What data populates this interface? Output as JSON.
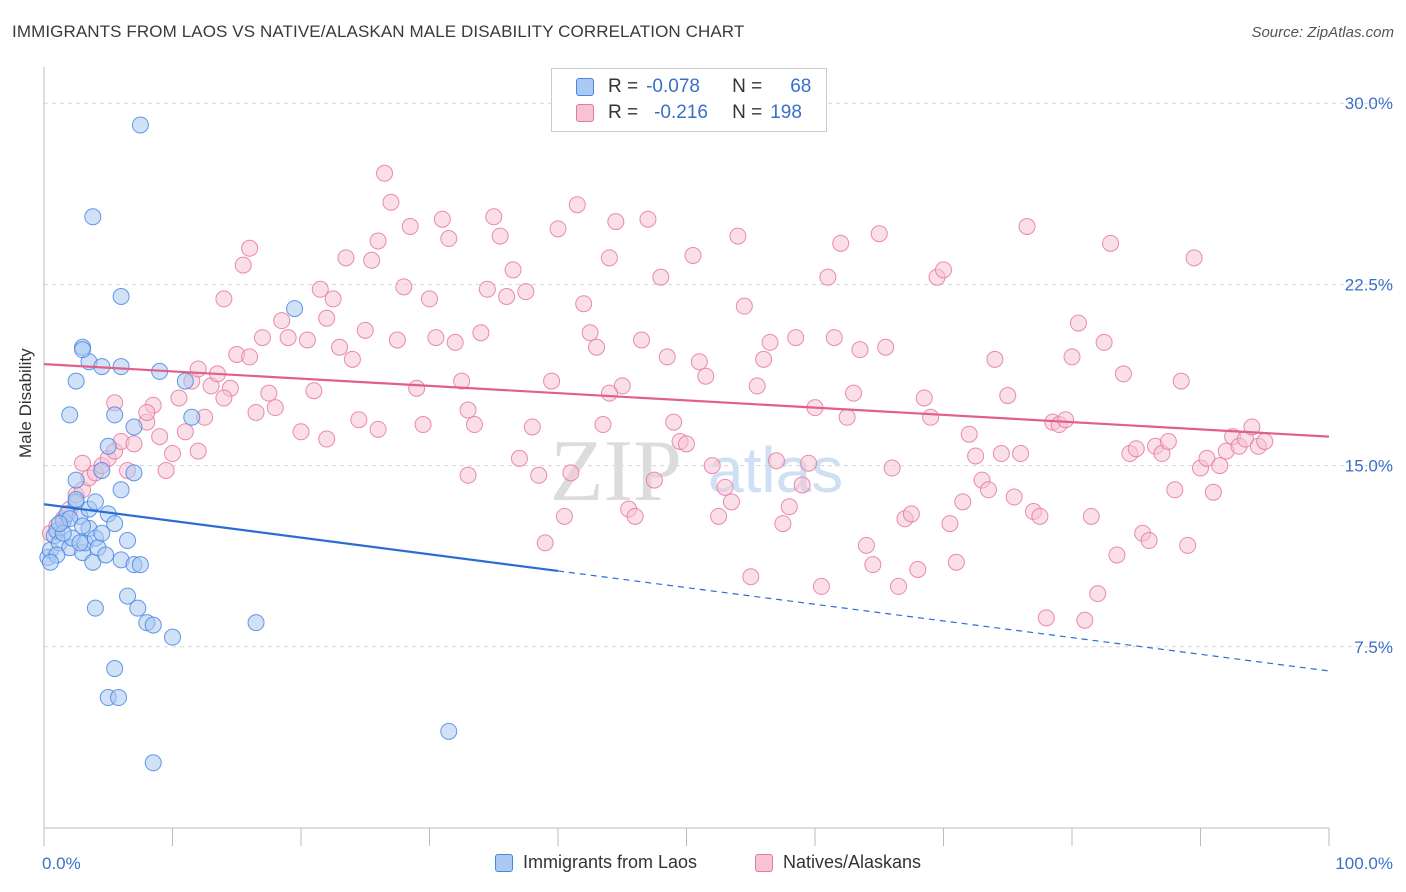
{
  "header": {
    "title": "IMMIGRANTS FROM LAOS VS NATIVE/ALASKAN MALE DISABILITY CORRELATION CHART",
    "source": "Source: ZipAtlas.com"
  },
  "watermark": {
    "zip": "ZIP",
    "atlas": "atlas"
  },
  "legend": {
    "rows": [
      {
        "r_label": "R =",
        "r_value": "-0.078",
        "n_label": "N =",
        "n_value": "68"
      },
      {
        "r_label": "R =",
        "r_value": "-0.216",
        "n_label": "N =",
        "n_value": "198"
      }
    ],
    "bottom": [
      "Immigrants from Laos",
      "Natives/Alaskans"
    ]
  },
  "colors": {
    "blue": "#4a86e0",
    "blue_fill": "#a9c8f2",
    "blue_line": "#2a6ed3",
    "pink": "#e8789f",
    "pink_fill": "#f6c3d5",
    "pink_line": "#e0608a",
    "axis_text": "#3a6fc9",
    "grid": "#d5d5d5"
  },
  "chart_data": {
    "type": "scatter",
    "title": "IMMIGRANTS FROM LAOS VS NATIVE/ALASKAN MALE DISABILITY CORRELATION CHART",
    "xlabel": "",
    "ylabel": "Male Disability",
    "xlim": [
      0,
      100
    ],
    "ylim": [
      0,
      31.5
    ],
    "x_tick_labels": [
      "0.0%",
      "100.0%"
    ],
    "y_ticks": [
      7.5,
      15.0,
      22.5,
      30.0
    ],
    "y_tick_labels": [
      "7.5%",
      "15.0%",
      "22.5%",
      "30.0%"
    ],
    "grid": true,
    "series": [
      {
        "name": "Immigrants from Laos",
        "color": "blue",
        "r": -0.078,
        "n": 68,
        "trend": {
          "x0": 0,
          "y0": 13.4,
          "x_solid_end": 40,
          "x1": 100,
          "y1": 6.5
        },
        "points": [
          [
            0.3,
            11.2
          ],
          [
            0.5,
            11.5
          ],
          [
            0.8,
            12.1
          ],
          [
            1.0,
            12.3
          ],
          [
            1.2,
            11.8
          ],
          [
            1.5,
            12.7
          ],
          [
            1.8,
            13.0
          ],
          [
            2.0,
            11.6
          ],
          [
            2.2,
            12.0
          ],
          [
            2.5,
            13.5
          ],
          [
            2.8,
            12.9
          ],
          [
            3.0,
            11.4
          ],
          [
            3.2,
            11.8
          ],
          [
            3.5,
            12.4
          ],
          [
            3.8,
            11.0
          ],
          [
            4.0,
            12.0
          ],
          [
            4.2,
            11.6
          ],
          [
            4.5,
            12.2
          ],
          [
            4.8,
            11.3
          ],
          [
            5.0,
            13.0
          ],
          [
            5.5,
            12.6
          ],
          [
            6.0,
            11.1
          ],
          [
            6.5,
            11.9
          ],
          [
            7.0,
            10.9
          ],
          [
            1.0,
            11.3
          ],
          [
            1.5,
            12.2
          ],
          [
            2.0,
            12.8
          ],
          [
            2.5,
            14.4
          ],
          [
            2.5,
            13.6
          ],
          [
            3.0,
            12.5
          ],
          [
            3.5,
            13.2
          ],
          [
            4.0,
            13.5
          ],
          [
            4.5,
            14.8
          ],
          [
            6.0,
            14.0
          ],
          [
            7.0,
            14.7
          ],
          [
            5.0,
            15.8
          ],
          [
            5.5,
            17.1
          ],
          [
            2.0,
            17.1
          ],
          [
            2.5,
            18.5
          ],
          [
            3.0,
            19.9
          ],
          [
            3.5,
            19.3
          ],
          [
            3.0,
            19.8
          ],
          [
            4.5,
            19.1
          ],
          [
            6.0,
            19.1
          ],
          [
            9.0,
            18.9
          ],
          [
            11.0,
            18.5
          ],
          [
            11.5,
            17.0
          ],
          [
            6.0,
            22.0
          ],
          [
            3.8,
            25.3
          ],
          [
            7.5,
            29.1
          ],
          [
            19.5,
            21.5
          ],
          [
            7.0,
            16.6
          ],
          [
            4.0,
            9.1
          ],
          [
            6.5,
            9.6
          ],
          [
            7.3,
            9.1
          ],
          [
            7.5,
            10.9
          ],
          [
            8.0,
            8.5
          ],
          [
            8.5,
            8.4
          ],
          [
            10.0,
            7.9
          ],
          [
            16.5,
            8.5
          ],
          [
            5.5,
            6.6
          ],
          [
            5.0,
            5.4
          ],
          [
            5.8,
            5.4
          ],
          [
            8.5,
            2.7
          ],
          [
            31.5,
            4.0
          ],
          [
            0.5,
            11.0
          ],
          [
            1.2,
            12.6
          ],
          [
            2.8,
            11.8
          ]
        ]
      },
      {
        "name": "Natives/Alaskans",
        "color": "pink",
        "r": -0.216,
        "n": 198,
        "trend": {
          "x0": 0,
          "y0": 19.2,
          "x1": 100,
          "y1": 16.2
        },
        "points": [
          [
            0.5,
            12.2
          ],
          [
            1.0,
            12.5
          ],
          [
            1.5,
            12.8
          ],
          [
            2.0,
            13.2
          ],
          [
            2.5,
            13.8
          ],
          [
            3.0,
            14.0
          ],
          [
            3.5,
            14.5
          ],
          [
            4.0,
            14.7
          ],
          [
            4.5,
            15.0
          ],
          [
            5.0,
            15.3
          ],
          [
            5.5,
            15.6
          ],
          [
            6.0,
            16.0
          ],
          [
            6.5,
            14.8
          ],
          [
            7.0,
            15.9
          ],
          [
            8.0,
            16.8
          ],
          [
            8.5,
            17.5
          ],
          [
            9.0,
            16.2
          ],
          [
            9.5,
            14.8
          ],
          [
            10.0,
            15.5
          ],
          [
            10.5,
            17.8
          ],
          [
            11.0,
            16.4
          ],
          [
            11.5,
            18.5
          ],
          [
            12.0,
            15.6
          ],
          [
            12.5,
            17.0
          ],
          [
            13.0,
            18.3
          ],
          [
            13.5,
            18.8
          ],
          [
            14.0,
            21.9
          ],
          [
            14.5,
            18.2
          ],
          [
            15.0,
            19.6
          ],
          [
            15.5,
            23.3
          ],
          [
            16.0,
            24.0
          ],
          [
            16.5,
            17.2
          ],
          [
            17.0,
            20.3
          ],
          [
            17.5,
            18.0
          ],
          [
            18.0,
            17.4
          ],
          [
            18.5,
            21.0
          ],
          [
            19.0,
            20.3
          ],
          [
            20.0,
            16.4
          ],
          [
            20.5,
            20.2
          ],
          [
            21.0,
            18.1
          ],
          [
            21.5,
            22.3
          ],
          [
            22.0,
            21.1
          ],
          [
            22.5,
            21.9
          ],
          [
            23.0,
            19.9
          ],
          [
            23.5,
            23.6
          ],
          [
            24.0,
            19.4
          ],
          [
            24.5,
            16.9
          ],
          [
            25.0,
            20.6
          ],
          [
            25.5,
            23.5
          ],
          [
            26.0,
            24.3
          ],
          [
            26.5,
            27.1
          ],
          [
            27.0,
            25.9
          ],
          [
            27.5,
            20.2
          ],
          [
            28.0,
            22.4
          ],
          [
            28.5,
            24.9
          ],
          [
            29.0,
            18.2
          ],
          [
            29.5,
            16.7
          ],
          [
            30.0,
            21.9
          ],
          [
            30.5,
            20.3
          ],
          [
            31.0,
            25.2
          ],
          [
            31.5,
            24.4
          ],
          [
            32.0,
            20.1
          ],
          [
            32.5,
            18.5
          ],
          [
            33.0,
            17.3
          ],
          [
            33.5,
            16.7
          ],
          [
            34.0,
            20.5
          ],
          [
            34.5,
            22.3
          ],
          [
            35.0,
            25.3
          ],
          [
            35.5,
            24.5
          ],
          [
            36.0,
            22.0
          ],
          [
            36.5,
            23.1
          ],
          [
            37.0,
            15.3
          ],
          [
            37.5,
            22.2
          ],
          [
            38.0,
            16.6
          ],
          [
            38.5,
            14.6
          ],
          [
            39.0,
            11.8
          ],
          [
            39.5,
            18.5
          ],
          [
            40.0,
            24.8
          ],
          [
            40.5,
            12.9
          ],
          [
            41.0,
            14.7
          ],
          [
            41.5,
            25.8
          ],
          [
            42.0,
            21.7
          ],
          [
            42.5,
            20.5
          ],
          [
            43.0,
            19.9
          ],
          [
            43.5,
            16.7
          ],
          [
            44.0,
            23.6
          ],
          [
            44.5,
            25.1
          ],
          [
            45.0,
            18.3
          ],
          [
            45.5,
            13.2
          ],
          [
            46.0,
            12.9
          ],
          [
            46.5,
            20.2
          ],
          [
            47.0,
            25.2
          ],
          [
            47.5,
            14.4
          ],
          [
            48.0,
            22.8
          ],
          [
            48.5,
            19.5
          ],
          [
            49.0,
            16.8
          ],
          [
            49.5,
            16.0
          ],
          [
            50.0,
            15.9
          ],
          [
            50.5,
            23.7
          ],
          [
            51.0,
            19.3
          ],
          [
            51.5,
            18.7
          ],
          [
            52.0,
            15.0
          ],
          [
            52.5,
            12.9
          ],
          [
            53.0,
            14.1
          ],
          [
            53.5,
            13.5
          ],
          [
            54.0,
            24.5
          ],
          [
            54.5,
            21.6
          ],
          [
            55.0,
            10.4
          ],
          [
            55.5,
            18.3
          ],
          [
            56.0,
            19.4
          ],
          [
            56.5,
            20.1
          ],
          [
            57.0,
            15.2
          ],
          [
            57.5,
            12.6
          ],
          [
            58.0,
            13.3
          ],
          [
            58.5,
            20.3
          ],
          [
            59.0,
            14.2
          ],
          [
            59.5,
            15.1
          ],
          [
            60.0,
            17.4
          ],
          [
            60.5,
            10.0
          ],
          [
            61.0,
            22.8
          ],
          [
            61.5,
            20.3
          ],
          [
            62.0,
            24.2
          ],
          [
            62.5,
            17.0
          ],
          [
            63.0,
            18.0
          ],
          [
            63.5,
            19.8
          ],
          [
            64.0,
            11.7
          ],
          [
            64.5,
            10.9
          ],
          [
            65.0,
            24.6
          ],
          [
            65.5,
            19.9
          ],
          [
            66.0,
            14.9
          ],
          [
            66.5,
            10.0
          ],
          [
            67.0,
            12.8
          ],
          [
            67.5,
            13.0
          ],
          [
            68.0,
            10.7
          ],
          [
            68.5,
            17.8
          ],
          [
            69.0,
            17.0
          ],
          [
            69.5,
            22.8
          ],
          [
            70.0,
            23.1
          ],
          [
            70.5,
            12.6
          ],
          [
            71.0,
            11.0
          ],
          [
            71.5,
            13.5
          ],
          [
            72.0,
            16.3
          ],
          [
            72.5,
            15.4
          ],
          [
            73.0,
            14.4
          ],
          [
            73.5,
            14.0
          ],
          [
            74.0,
            19.4
          ],
          [
            74.5,
            15.5
          ],
          [
            75.0,
            17.9
          ],
          [
            75.5,
            13.7
          ],
          [
            76.0,
            15.5
          ],
          [
            76.5,
            24.9
          ],
          [
            77.0,
            13.1
          ],
          [
            77.5,
            12.9
          ],
          [
            78.0,
            8.7
          ],
          [
            78.5,
            16.8
          ],
          [
            79.0,
            16.7
          ],
          [
            79.5,
            16.9
          ],
          [
            80.0,
            19.5
          ],
          [
            80.5,
            20.9
          ],
          [
            81.0,
            8.6
          ],
          [
            81.5,
            12.9
          ],
          [
            82.0,
            9.7
          ],
          [
            82.5,
            20.1
          ],
          [
            83.0,
            24.2
          ],
          [
            83.5,
            11.3
          ],
          [
            84.0,
            18.8
          ],
          [
            84.5,
            15.5
          ],
          [
            85.0,
            15.7
          ],
          [
            85.5,
            12.2
          ],
          [
            86.0,
            11.9
          ],
          [
            86.5,
            15.8
          ],
          [
            87.0,
            15.5
          ],
          [
            87.5,
            16.0
          ],
          [
            88.0,
            14.0
          ],
          [
            88.5,
            18.5
          ],
          [
            89.0,
            11.7
          ],
          [
            89.5,
            23.6
          ],
          [
            90.0,
            14.9
          ],
          [
            90.5,
            15.3
          ],
          [
            91.0,
            13.9
          ],
          [
            91.5,
            15.0
          ],
          [
            92.0,
            15.6
          ],
          [
            92.5,
            16.2
          ],
          [
            93.0,
            15.8
          ],
          [
            93.5,
            16.1
          ],
          [
            94.0,
            16.6
          ],
          [
            94.5,
            15.8
          ],
          [
            95.0,
            16.0
          ],
          [
            3.0,
            15.1
          ],
          [
            5.5,
            17.6
          ],
          [
            8.0,
            17.2
          ],
          [
            12.0,
            19.0
          ],
          [
            14.0,
            17.8
          ],
          [
            16.0,
            19.5
          ],
          [
            22.0,
            16.1
          ],
          [
            26.0,
            16.5
          ],
          [
            33.0,
            14.6
          ],
          [
            44.0,
            18.0
          ]
        ]
      }
    ]
  }
}
